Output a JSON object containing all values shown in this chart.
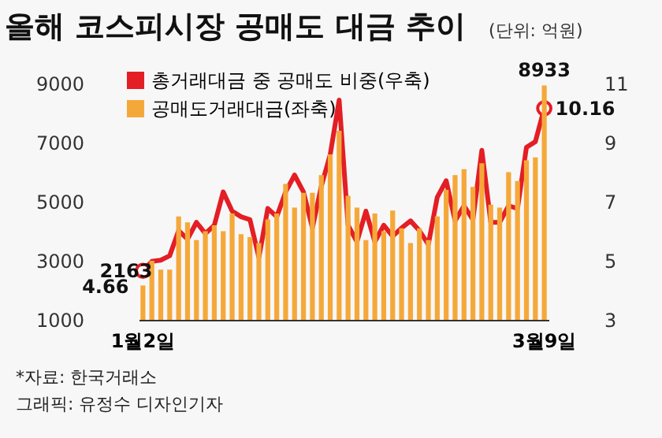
{
  "chart_data": {
    "type": "bar",
    "title": "올해 코스피시장 공매도 대금 추이",
    "subtitle": "(단위: 억원)",
    "categories": [
      "1월2일",
      null,
      null,
      null,
      null,
      null,
      null,
      null,
      null,
      null,
      null,
      null,
      null,
      null,
      null,
      null,
      null,
      null,
      null,
      null,
      null,
      null,
      null,
      null,
      null,
      null,
      null,
      null,
      null,
      null,
      null,
      null,
      null,
      null,
      null,
      null,
      null,
      null,
      null,
      null,
      null,
      null,
      null,
      null,
      null,
      "3월9일"
    ],
    "series": [
      {
        "name": "총거래대금 중 공매도 비중(우축)",
        "type": "line",
        "axis": "y2",
        "color": "#e31e24",
        "values": [
          4.66,
          4.98,
          5.02,
          5.17,
          6.02,
          5.73,
          6.3,
          5.92,
          6.2,
          7.33,
          6.68,
          6.49,
          6.39,
          5.11,
          6.77,
          6.49,
          7.33,
          7.9,
          7.33,
          6.11,
          7.52,
          8.6,
          10.44,
          6.2,
          5.64,
          6.68,
          5.64,
          6.2,
          5.83,
          6.11,
          6.35,
          6.02,
          5.55,
          7.15,
          7.71,
          6.35,
          6.86,
          6.39,
          8.74,
          6.3,
          6.3,
          6.86,
          6.77,
          8.84,
          9.03,
          10.16
        ],
        "value_labels": [
          "4.66",
          null,
          null,
          null,
          null,
          null,
          null,
          null,
          null,
          null,
          null,
          null,
          null,
          null,
          null,
          null,
          null,
          null,
          null,
          null,
          null,
          null,
          null,
          null,
          null,
          null,
          null,
          null,
          null,
          null,
          null,
          null,
          null,
          null,
          null,
          null,
          null,
          null,
          null,
          null,
          null,
          null,
          null,
          null,
          null,
          "10.16"
        ]
      },
      {
        "name": "공매도거래대금(좌축)",
        "color": "#f5a83a",
        "values": [
          2163,
          3000,
          2700,
          2700,
          4500,
          4300,
          3700,
          4000,
          4200,
          4000,
          4600,
          3900,
          3800,
          3600,
          4400,
          4600,
          5600,
          4800,
          5300,
          5300,
          5900,
          6600,
          7400,
          5200,
          4800,
          3700,
          4600,
          4000,
          4700,
          4100,
          3600,
          4100,
          3700,
          4500,
          5400,
          5900,
          6100,
          5500,
          6300,
          4900,
          4800,
          6000,
          5700,
          6400,
          6500,
          8933
        ],
        "value_labels": [
          "2163",
          null,
          null,
          null,
          null,
          null,
          null,
          null,
          null,
          null,
          null,
          null,
          null,
          null,
          null,
          null,
          null,
          null,
          null,
          null,
          null,
          null,
          null,
          null,
          null,
          null,
          null,
          null,
          null,
          null,
          null,
          null,
          null,
          null,
          null,
          null,
          null,
          null,
          null,
          null,
          null,
          null,
          null,
          null,
          null,
          "8933"
        ]
      }
    ],
    "ylim": [
      1000,
      9000
    ],
    "yticks": [
      1000,
      3000,
      5000,
      7000,
      9000
    ],
    "y2lim": [
      3,
      11
    ],
    "y2ticks": [
      3,
      5,
      7,
      9,
      11
    ],
    "legend": "top left",
    "grid": false,
    "line_style": "solid",
    "marker": "none",
    "annotations": [
      "*자료: 한국거래소",
      "그래픽: 유정수 디자인기자"
    ]
  }
}
